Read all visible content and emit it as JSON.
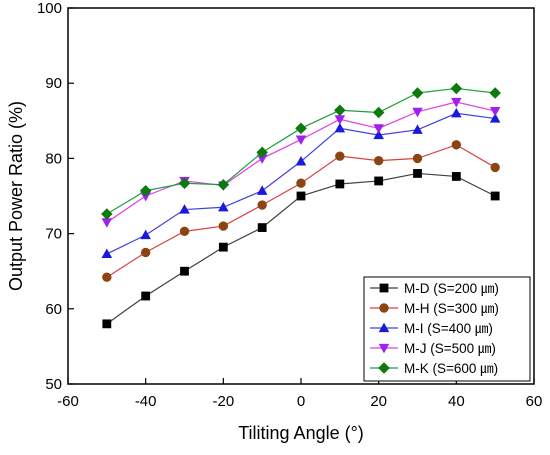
{
  "chart_data": {
    "type": "line",
    "title": "",
    "xlabel": "Tiliting Angle (°)",
    "ylabel": "Output Power Ratio (%)",
    "xlim": [
      -60,
      60
    ],
    "ylim": [
      50,
      100
    ],
    "xticks": [
      -60,
      -40,
      -20,
      0,
      20,
      40,
      60
    ],
    "yticks": [
      50,
      60,
      70,
      80,
      90,
      100
    ],
    "x": [
      -50,
      -40,
      -30,
      -20,
      -10,
      0,
      10,
      20,
      30,
      40,
      50
    ],
    "grid": false,
    "legend_position": "bottom-right",
    "series": [
      {
        "name": "M-D (S=200 ㎛)",
        "marker": "square",
        "line_color": "#404040",
        "marker_color": "#000000",
        "values": [
          58.0,
          61.7,
          65.0,
          68.2,
          70.8,
          75.0,
          76.6,
          77.0,
          78.0,
          77.6,
          75.0
        ]
      },
      {
        "name": "M-H (S=300 ㎛)",
        "marker": "circle",
        "line_color": "#d94040",
        "marker_color": "#8b4513",
        "values": [
          64.2,
          67.5,
          70.3,
          71.0,
          73.8,
          76.7,
          80.3,
          79.7,
          80.0,
          81.8,
          78.8
        ]
      },
      {
        "name": "M-I (S=400 ㎛)",
        "marker": "triangle-up",
        "line_color": "#4040e0",
        "marker_color": "#1a1adc",
        "values": [
          67.3,
          69.8,
          73.2,
          73.5,
          75.7,
          79.6,
          84.0,
          83.1,
          83.8,
          86.0,
          85.3
        ]
      },
      {
        "name": "M-J (S=500 ㎛)",
        "marker": "triangle-down",
        "line_color": "#e040e0",
        "marker_color": "#a020f0",
        "values": [
          71.5,
          75.0,
          77.0,
          76.4,
          80.0,
          82.5,
          85.2,
          84.0,
          86.2,
          87.5,
          86.3
        ]
      },
      {
        "name": "M-K (S=600 ㎛)",
        "marker": "diamond",
        "line_color": "#1e9e3e",
        "marker_color": "#0d7a0d",
        "values": [
          72.6,
          75.7,
          76.7,
          76.5,
          80.8,
          84.0,
          86.4,
          86.1,
          88.7,
          89.3,
          88.7
        ]
      }
    ]
  }
}
